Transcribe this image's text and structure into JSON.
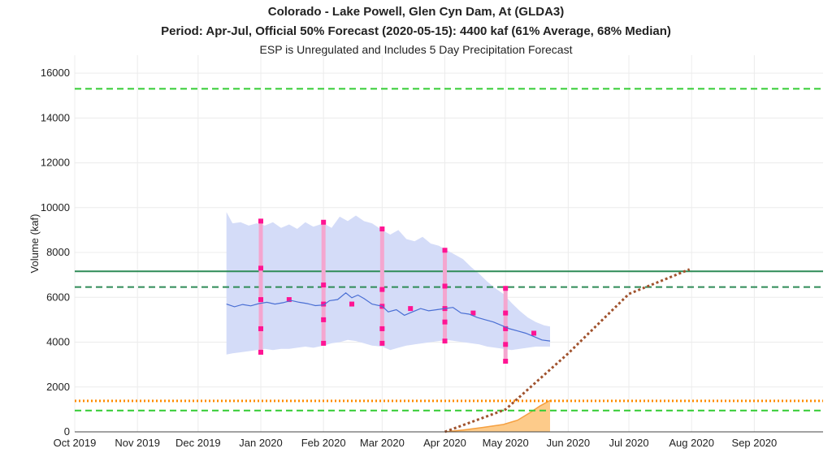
{
  "chart_data": {
    "type": "line",
    "title": "Colorado - Lake Powell, Glen Cyn Dam, At (GLDA3)",
    "subtitle": "Period: Apr-Jul, Official 50% Forecast (2020-05-15): 4400 kaf (61% Average, 68% Median)",
    "note": "ESP is Unregulated and Includes 5 Day Precipitation Forecast",
    "xlabel": "",
    "ylabel": "Volume (kaf)",
    "xlim": [
      "2019-10-01",
      "2020-10-05"
    ],
    "ylim": [
      0,
      16800
    ],
    "x_ticks": [
      {
        "date": "2019-10-01",
        "label": "Oct 2019"
      },
      {
        "date": "2019-11-01",
        "label": "Nov 2019"
      },
      {
        "date": "2019-12-01",
        "label": "Dec 2019"
      },
      {
        "date": "2020-01-01",
        "label": "Jan 2020"
      },
      {
        "date": "2020-02-01",
        "label": "Feb 2020"
      },
      {
        "date": "2020-03-01",
        "label": "Mar 2020"
      },
      {
        "date": "2020-04-01",
        "label": "Apr 2020"
      },
      {
        "date": "2020-05-01",
        "label": "May 2020"
      },
      {
        "date": "2020-06-01",
        "label": "Jun 2020"
      },
      {
        "date": "2020-07-01",
        "label": "Jul 2020"
      },
      {
        "date": "2020-08-01",
        "label": "Aug 2020"
      },
      {
        "date": "2020-09-01",
        "label": "Sep 2020"
      }
    ],
    "y_ticks": [
      0,
      2000,
      4000,
      6000,
      8000,
      10000,
      12000,
      14000,
      16000
    ],
    "grid": true,
    "colors": {
      "esp_band": "#d4dcf8",
      "esp_median": "#4a6fd4",
      "official_range": "#f4a6cf",
      "official_points": "#ff1493",
      "accumulated_fill": "#fdcb8a",
      "accumulated_line": "#f5a040",
      "projection": "#a0522d",
      "light_green_dash": "#33cc33",
      "dark_green": "#2e8b57",
      "orange_dotted": "#ff8c00"
    },
    "reference_lines": [
      {
        "value": 15300,
        "style": "dashed",
        "color": "#33cc33"
      },
      {
        "value": 7160,
        "style": "solid",
        "color": "#2e8b57"
      },
      {
        "value": 6460,
        "style": "dashed",
        "color": "#2e8b57"
      },
      {
        "value": 1380,
        "style": "dotted",
        "color": "#ff8c00"
      },
      {
        "value": 950,
        "style": "dashed",
        "color": "#33cc33"
      }
    ],
    "esp_band_upper": [
      [
        "2019-12-15",
        9800
      ],
      [
        "2019-12-18",
        9300
      ],
      [
        "2019-12-22",
        9350
      ],
      [
        "2019-12-26",
        9200
      ],
      [
        "2019-12-30",
        9300
      ],
      [
        "2020-01-03",
        9200
      ],
      [
        "2020-01-07",
        9350
      ],
      [
        "2020-01-11",
        9100
      ],
      [
        "2020-01-15",
        9250
      ],
      [
        "2020-01-19",
        9050
      ],
      [
        "2020-01-23",
        9350
      ],
      [
        "2020-01-27",
        9150
      ],
      [
        "2020-02-01",
        9300
      ],
      [
        "2020-02-05",
        9100
      ],
      [
        "2020-02-09",
        9600
      ],
      [
        "2020-02-13",
        9400
      ],
      [
        "2020-02-17",
        9650
      ],
      [
        "2020-02-21",
        9400
      ],
      [
        "2020-02-25",
        9300
      ],
      [
        "2020-03-01",
        9000
      ],
      [
        "2020-03-05",
        8800
      ],
      [
        "2020-03-09",
        9000
      ],
      [
        "2020-03-13",
        8600
      ],
      [
        "2020-03-17",
        8500
      ],
      [
        "2020-03-21",
        8700
      ],
      [
        "2020-03-25",
        8400
      ],
      [
        "2020-03-29",
        8300
      ],
      [
        "2020-04-02",
        8100
      ],
      [
        "2020-04-06",
        7900
      ],
      [
        "2020-04-10",
        7700
      ],
      [
        "2020-04-14",
        7350
      ],
      [
        "2020-04-18",
        7050
      ],
      [
        "2020-04-22",
        6700
      ],
      [
        "2020-04-26",
        6400
      ],
      [
        "2020-04-30",
        6150
      ],
      [
        "2020-05-04",
        5750
      ],
      [
        "2020-05-08",
        5400
      ],
      [
        "2020-05-12",
        5100
      ],
      [
        "2020-05-16",
        4900
      ],
      [
        "2020-05-20",
        4750
      ],
      [
        "2020-05-23",
        4700
      ]
    ],
    "esp_band_lower": [
      [
        "2019-12-15",
        3450
      ],
      [
        "2019-12-18",
        3500
      ],
      [
        "2019-12-22",
        3550
      ],
      [
        "2019-12-26",
        3600
      ],
      [
        "2019-12-30",
        3650
      ],
      [
        "2020-01-03",
        3700
      ],
      [
        "2020-01-07",
        3650
      ],
      [
        "2020-01-11",
        3700
      ],
      [
        "2020-01-15",
        3700
      ],
      [
        "2020-01-19",
        3750
      ],
      [
        "2020-01-23",
        3800
      ],
      [
        "2020-01-27",
        3750
      ],
      [
        "2020-02-01",
        3850
      ],
      [
        "2020-02-05",
        3950
      ],
      [
        "2020-02-09",
        4000
      ],
      [
        "2020-02-13",
        4100
      ],
      [
        "2020-02-17",
        4050
      ],
      [
        "2020-02-21",
        3950
      ],
      [
        "2020-02-25",
        3850
      ],
      [
        "2020-03-01",
        3800
      ],
      [
        "2020-03-05",
        3650
      ],
      [
        "2020-03-09",
        3750
      ],
      [
        "2020-03-13",
        3850
      ],
      [
        "2020-03-17",
        3900
      ],
      [
        "2020-03-21",
        3950
      ],
      [
        "2020-03-25",
        4000
      ],
      [
        "2020-03-29",
        4050
      ],
      [
        "2020-04-02",
        4100
      ],
      [
        "2020-04-06",
        4050
      ],
      [
        "2020-04-10",
        4000
      ],
      [
        "2020-04-14",
        3950
      ],
      [
        "2020-04-18",
        3900
      ],
      [
        "2020-04-22",
        3800
      ],
      [
        "2020-04-26",
        3750
      ],
      [
        "2020-04-30",
        3700
      ],
      [
        "2020-05-04",
        3650
      ],
      [
        "2020-05-08",
        3700
      ],
      [
        "2020-05-12",
        3750
      ],
      [
        "2020-05-16",
        3800
      ],
      [
        "2020-05-20",
        3800
      ],
      [
        "2020-05-23",
        3800
      ]
    ],
    "esp_median": [
      [
        "2019-12-15",
        5700
      ],
      [
        "2019-12-19",
        5580
      ],
      [
        "2019-12-23",
        5680
      ],
      [
        "2019-12-27",
        5620
      ],
      [
        "2019-12-31",
        5720
      ],
      [
        "2020-01-04",
        5780
      ],
      [
        "2020-01-08",
        5700
      ],
      [
        "2020-01-12",
        5760
      ],
      [
        "2020-01-16",
        5860
      ],
      [
        "2020-01-20",
        5780
      ],
      [
        "2020-01-24",
        5720
      ],
      [
        "2020-01-28",
        5630
      ],
      [
        "2020-02-01",
        5660
      ],
      [
        "2020-02-04",
        5850
      ],
      [
        "2020-02-08",
        5900
      ],
      [
        "2020-02-12",
        6200
      ],
      [
        "2020-02-15",
        5980
      ],
      [
        "2020-02-18",
        6100
      ],
      [
        "2020-02-21",
        5950
      ],
      [
        "2020-02-25",
        5700
      ],
      [
        "2020-03-01",
        5600
      ],
      [
        "2020-03-04",
        5350
      ],
      [
        "2020-03-08",
        5450
      ],
      [
        "2020-03-12",
        5200
      ],
      [
        "2020-03-16",
        5350
      ],
      [
        "2020-03-20",
        5500
      ],
      [
        "2020-03-24",
        5400
      ],
      [
        "2020-03-28",
        5450
      ],
      [
        "2020-04-01",
        5500
      ],
      [
        "2020-04-05",
        5550
      ],
      [
        "2020-04-09",
        5300
      ],
      [
        "2020-04-13",
        5250
      ],
      [
        "2020-04-17",
        5100
      ],
      [
        "2020-04-21",
        5000
      ],
      [
        "2020-04-25",
        4900
      ],
      [
        "2020-04-29",
        4750
      ],
      [
        "2020-05-03",
        4600
      ],
      [
        "2020-05-07",
        4500
      ],
      [
        "2020-05-11",
        4400
      ],
      [
        "2020-05-15",
        4250
      ],
      [
        "2020-05-19",
        4100
      ],
      [
        "2020-05-23",
        4050
      ]
    ],
    "official_forecasts": [
      {
        "date": "2020-01-01",
        "values": [
          3550,
          4600,
          5900,
          7300,
          9400
        ]
      },
      {
        "date": "2020-01-15",
        "values": [
          5900
        ]
      },
      {
        "date": "2020-02-01",
        "values": [
          3950,
          5000,
          5700,
          6550,
          9350
        ]
      },
      {
        "date": "2020-02-15",
        "values": [
          5700
        ]
      },
      {
        "date": "2020-03-01",
        "values": [
          3950,
          4600,
          5600,
          6350,
          9050
        ]
      },
      {
        "date": "2020-03-15",
        "values": [
          5500
        ]
      },
      {
        "date": "2020-04-01",
        "values": [
          4050,
          4900,
          5500,
          6500,
          8100
        ]
      },
      {
        "date": "2020-04-15",
        "values": [
          5300
        ]
      },
      {
        "date": "2020-05-01",
        "values": [
          3150,
          3900,
          4600,
          5300,
          6400
        ]
      },
      {
        "date": "2020-05-15",
        "values": [
          4400
        ]
      }
    ],
    "accumulated_observed": [
      [
        "2020-04-01",
        0
      ],
      [
        "2020-04-10",
        80
      ],
      [
        "2020-04-20",
        200
      ],
      [
        "2020-04-30",
        330
      ],
      [
        "2020-05-07",
        520
      ],
      [
        "2020-05-13",
        850
      ],
      [
        "2020-05-18",
        1150
      ],
      [
        "2020-05-23",
        1400
      ]
    ],
    "projected_accumulation": [
      [
        "2020-04-01",
        0
      ],
      [
        "2020-05-01",
        1000
      ],
      [
        "2020-06-01",
        3500
      ],
      [
        "2020-07-01",
        6150
      ],
      [
        "2020-07-31",
        7250
      ]
    ]
  }
}
